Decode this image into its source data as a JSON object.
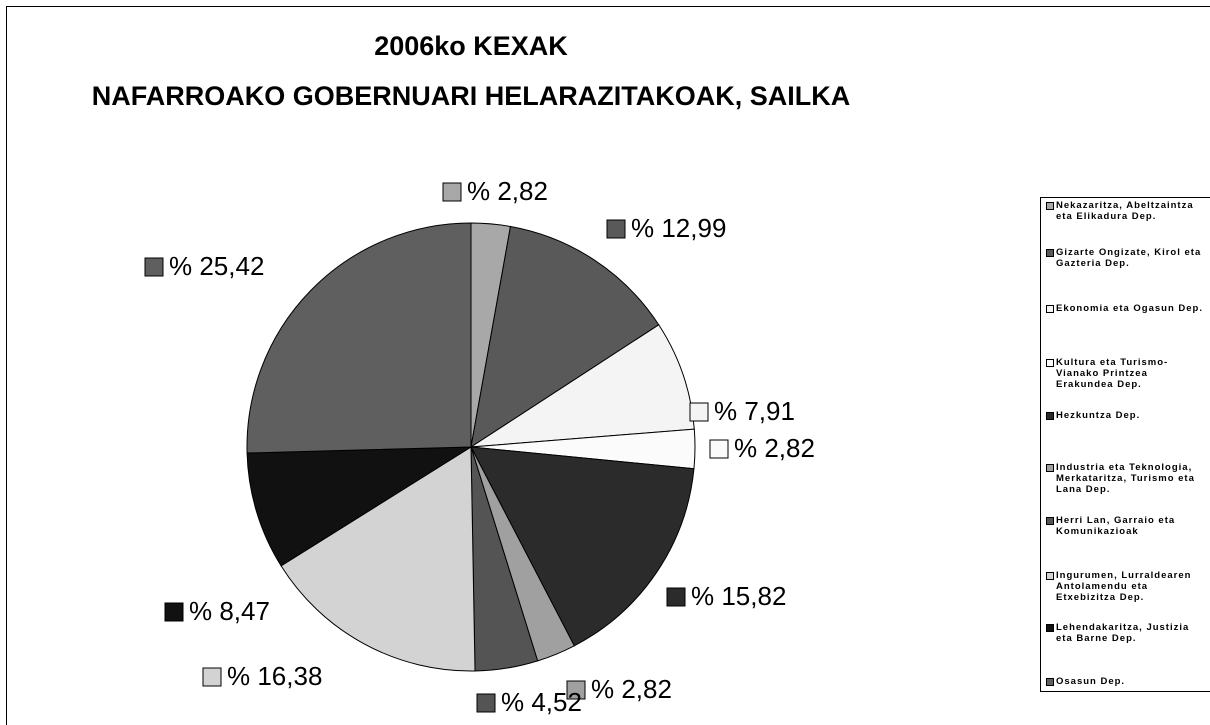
{
  "chart_data": {
    "type": "pie",
    "title": "2006ko KEXAK",
    "subtitle": "NAFARROAKO GOBERNUARI HELARAZITAKOAK, SAILKA",
    "categories": [
      "Nekazaritza, Abeltzaintza eta Elikadura Dep.",
      "Gizarte Ongizate, Kirol eta Gazteria Dep.",
      "Ekonomia eta Ogasun Dep.",
      "Kultura eta Turismo-Vianako Printzea Erakundea Dep.",
      "Hezkuntza Dep.",
      "Industria eta Teknologia, Merkataritza, Turismo eta Lana Dep.",
      "Herri Lan, Garraio eta Komunikazioak",
      "Ingurumen, Lurraldearen Antolamendu eta Etxebizitza Dep.",
      "Lehendakaritza, Justizia eta Barne Dep.",
      "Osasun Dep."
    ],
    "values": [
      2.82,
      12.99,
      7.91,
      2.82,
      15.82,
      2.82,
      4.52,
      16.38,
      8.47,
      25.42
    ],
    "value_labels": [
      "% 2,82",
      "% 12,99",
      "% 7,91",
      "% 2,82",
      "% 15,82",
      "% 2,82",
      "% 4,52",
      "% 16,38",
      "% 8,47",
      "% 25,42"
    ],
    "colors": [
      "#a8a8a8",
      "#595959",
      "#f4f4f4",
      "#fbfbfb",
      "#2b2b2b",
      "#a0a0a0",
      "#545454",
      "#d3d3d3",
      "#111111",
      "#5f5f5f"
    ]
  }
}
